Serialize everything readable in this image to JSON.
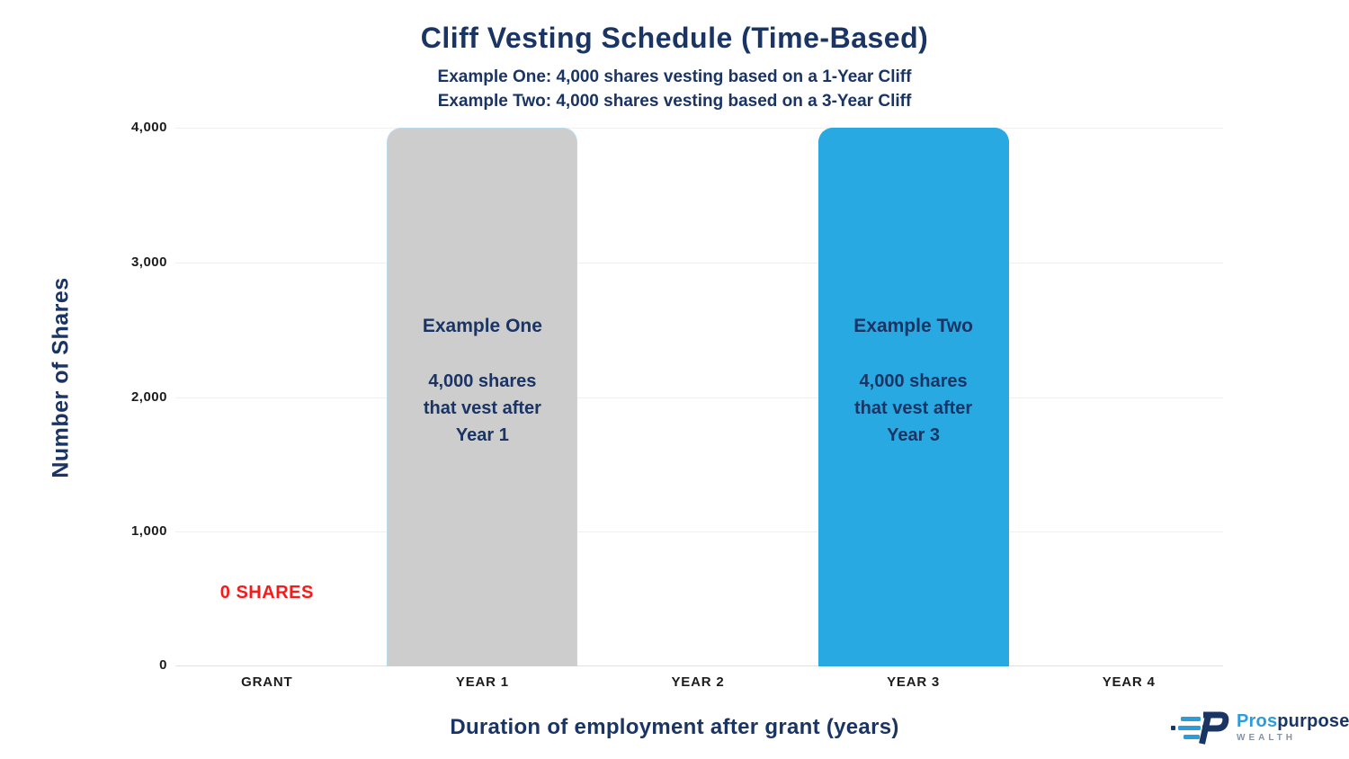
{
  "header": {
    "title": "Cliff Vesting Schedule (Time-Based)"
  },
  "chart_data": {
    "type": "bar",
    "title": "Cliff Vesting Schedule (Time-Based)",
    "subtitles": [
      "Example One: 4,000 shares vesting based on a 1-Year Cliff",
      "Example Two: 4,000 shares vesting based on a 3-Year Cliff"
    ],
    "categories": [
      "GRANT",
      "YEAR 1",
      "YEAR 2",
      "YEAR 3",
      "YEAR 4"
    ],
    "values": [
      0,
      4000,
      0,
      4000,
      0
    ],
    "xlabel": "Duration of employment after grant (years)",
    "ylabel": "Number of Shares",
    "ylim": [
      0,
      4000
    ],
    "grid": "horizontal",
    "legend": "none",
    "y_ticks": [
      {
        "value": 0,
        "label": "0"
      },
      {
        "value": 1000,
        "label": "1,000"
      },
      {
        "value": 2000,
        "label": "2,000"
      },
      {
        "value": 3000,
        "label": "3,000"
      },
      {
        "value": 4000,
        "label": "4,000"
      }
    ],
    "bars": [
      {
        "name": "bar-example-one",
        "category_index": 1,
        "value": 4000,
        "color": "#CDCDCD",
        "border_color": "#B9DCEC",
        "heading": "Example One",
        "lines": [
          "4,000 shares",
          "that vest after",
          "Year 1"
        ]
      },
      {
        "name": "bar-example-two",
        "category_index": 3,
        "value": 4000,
        "color": "#29A9E1",
        "border_color": "#29A9E1",
        "heading": "Example Two",
        "lines": [
          "4,000 shares",
          "that vest after",
          "Year 3"
        ]
      }
    ],
    "annotations": [
      {
        "category_index": 0,
        "text": "0 SHARES",
        "color": "#F71A1A"
      }
    ]
  },
  "colors": {
    "navy": "#1A3464",
    "bar_blue": "#29A9E1",
    "bar_gray": "#CDCDCD",
    "red": "#F71A1A",
    "gridline": "#F0F0F0",
    "axis_line": "#E2E2E2",
    "tick_text": "#1C1C1C",
    "logo_light_blue": "#2D9CDB",
    "logo_gray": "#8594A3"
  },
  "logo": {
    "brand_first": "Pros",
    "brand_second": "purpose",
    "tagline": "WEALTH"
  }
}
